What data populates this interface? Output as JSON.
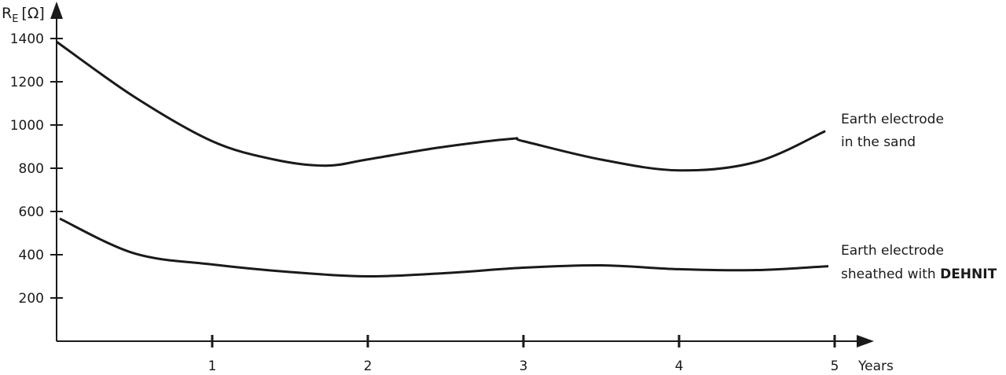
{
  "chart_data": {
    "type": "line",
    "ylabel_main": "R",
    "ylabel_sub": "E",
    "ylabel_unit": "[Ω]",
    "xlabel": "Years",
    "xlim": [
      0,
      5.2
    ],
    "ylim": [
      0,
      1450
    ],
    "x_ticks": [
      1,
      2,
      3,
      4,
      5
    ],
    "y_ticks": [
      200,
      400,
      600,
      800,
      1000,
      1200,
      1400
    ],
    "grid": false,
    "series": [
      {
        "label_lines": [
          "Earth electrode",
          "in the sand"
        ],
        "x": [
          0,
          0.5,
          1,
          1.4,
          1.73,
          2,
          2.46,
          2.92,
          3,
          3.5,
          4,
          4.5,
          4.94
        ],
        "y": [
          1385,
          1130,
          925,
          840,
          812,
          841,
          896,
          936,
          925,
          840,
          790,
          830,
          972
        ]
      },
      {
        "label_lines": [
          "Earth electrode",
          "sheathed with "
        ],
        "label_bold": "DEHNIT",
        "x": [
          0.02,
          0.5,
          1,
          1.5,
          2,
          2.5,
          3,
          3.5,
          4,
          4.5,
          4.96
        ],
        "y": [
          567,
          406,
          355,
          320,
          300,
          315,
          340,
          351,
          333,
          329,
          347
        ]
      }
    ],
    "line_color": "#1a1a1a"
  }
}
